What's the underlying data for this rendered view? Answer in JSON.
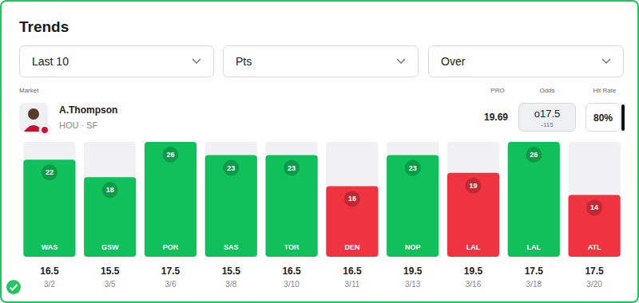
{
  "header": {
    "title": "Trends",
    "filters": [
      "Last 10",
      "Pts",
      "Over"
    ],
    "columns": {
      "market": "Market",
      "pro": "PRO",
      "odds": "Odds",
      "hit_rate": "Hit Rate"
    }
  },
  "player": {
    "name": "A.Thompson",
    "team": "HOU · SF",
    "pro": "19.69",
    "odds_line": "o17.5",
    "odds_price": "-115",
    "hit_rate": "80%"
  },
  "chart_data": {
    "type": "bar",
    "categories": [
      "WAS",
      "GSW",
      "POR",
      "SAS",
      "TOR",
      "DEN",
      "NOP",
      "LAL",
      "LAL",
      "ATL"
    ],
    "values": [
      22,
      18,
      26,
      23,
      23,
      16,
      23,
      19,
      26,
      14
    ],
    "colors": [
      "#10c05b",
      "#10c05b",
      "#10c05b",
      "#10c05b",
      "#10c05b",
      "#ef3340",
      "#10c05b",
      "#ef3340",
      "#10c05b",
      "#ef3340"
    ],
    "lines": [
      16.5,
      15.5,
      17.5,
      15.5,
      16.5,
      16.5,
      19.5,
      19.5,
      17.5,
      17.5
    ],
    "dates": [
      "3/2",
      "3/5",
      "3/6",
      "3/8",
      "3/10",
      "3/11",
      "3/13",
      "3/16",
      "3/18",
      "3/20"
    ],
    "ylim": [
      0,
      26
    ],
    "tick_labels": false,
    "grid": false,
    "data_labels": true
  }
}
